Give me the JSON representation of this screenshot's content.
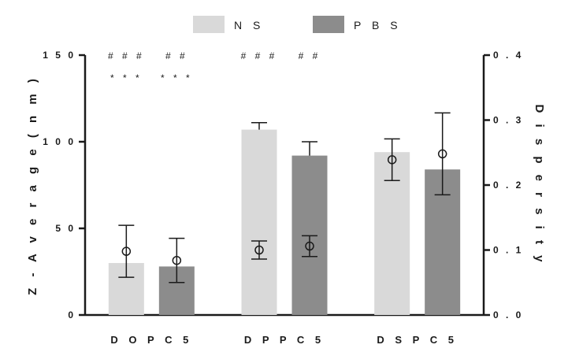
{
  "chart_data": {
    "type": "bar",
    "categories": [
      "DOPC5",
      "DPPC5",
      "DSPC5"
    ],
    "category_labels": [
      "D O P C 5",
      "D P P C 5",
      "D S P C 5"
    ],
    "series": [
      {
        "name": "NS",
        "legend_label": "N S",
        "color": "#d9d9d9",
        "values": [
          30,
          107,
          94
        ],
        "errors": [
          0,
          4,
          0
        ],
        "dispersity": [
          0.098,
          0.1,
          0.239
        ],
        "dispersity_err": [
          0.04,
          0.014,
          0.032
        ]
      },
      {
        "name": "PBS",
        "legend_label": "P B S",
        "color": "#8c8c8c",
        "values": [
          28,
          92,
          84
        ],
        "errors": [
          0,
          8,
          0
        ],
        "dispersity": [
          0.084,
          0.106,
          0.248
        ],
        "dispersity_err": [
          0.034,
          0.016,
          0.063
        ]
      }
    ],
    "ylabel": "Z-Average (nm)",
    "ylabel_spaced": "Z - A v e r a g e   ( n m )",
    "y2label": "Dispersity",
    "y2label_spaced": "D i s p e r s i t y",
    "ylim": [
      0,
      150
    ],
    "y2lim": [
      0,
      0.4
    ],
    "yticks": [
      "0",
      "50",
      "100",
      "150"
    ],
    "yticks_spaced": [
      "0",
      "5 0",
      "1 0 0",
      "1 5 0"
    ],
    "y2ticks": [
      "0 . 0",
      "0 . 1",
      "0 . 2",
      "0 . 3",
      "0 . 4"
    ],
    "annotations": [
      {
        "category": 0,
        "series": 0,
        "row": 1,
        "text": "# # #"
      },
      {
        "category": 0,
        "series": 1,
        "row": 1,
        "text": "# #"
      },
      {
        "category": 0,
        "series": 0,
        "row": 2,
        "text": "* * *"
      },
      {
        "category": 0,
        "series": 1,
        "row": 2,
        "text": "* * *"
      },
      {
        "category": 1,
        "series": 0,
        "row": 1,
        "text": "# # #"
      },
      {
        "category": 1,
        "series": 1,
        "row": 1,
        "text": "# #"
      }
    ]
  }
}
